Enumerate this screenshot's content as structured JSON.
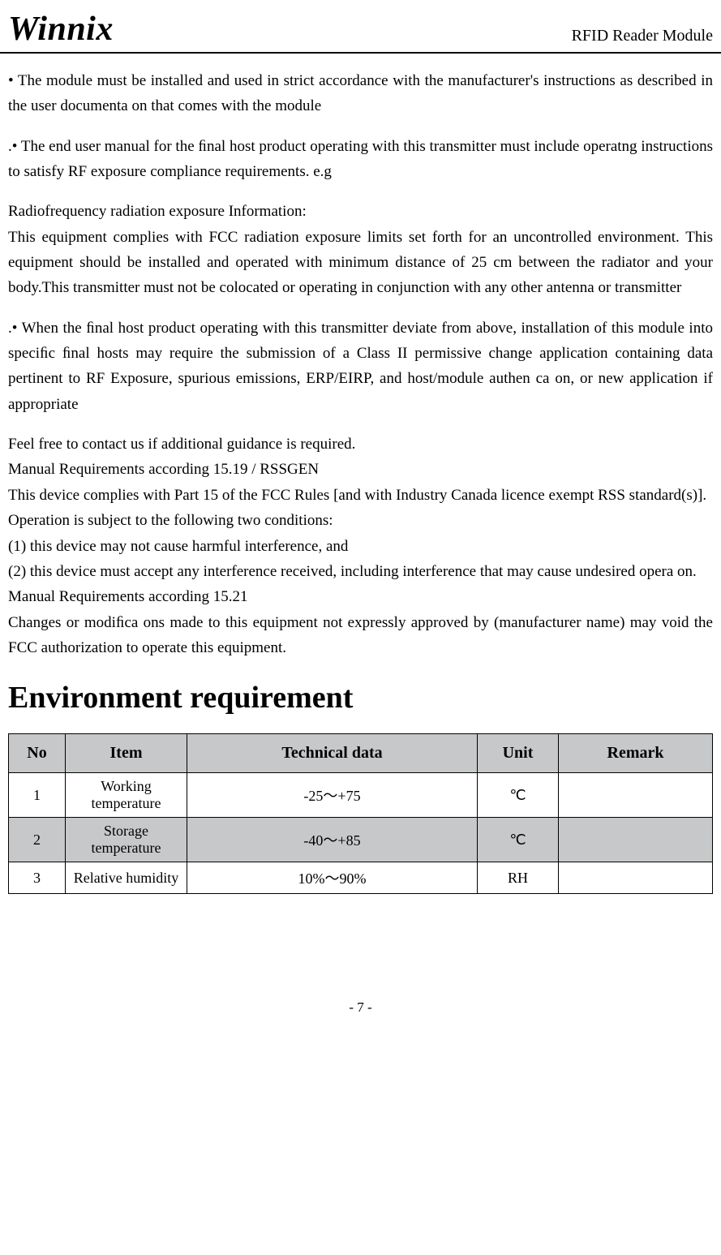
{
  "header": {
    "logo": "Winnix",
    "right": "RFID Reader Module"
  },
  "paragraphs": {
    "p1": "• The module must be installed and used in strict accordance with the manufacturer's instructions as described in the user documenta on that comes with the module",
    "p2": ".• The end user manual for the ﬁnal host product operating with this transmitter must include operatng instructions to satisfy RF exposure compliance requirements. e.g",
    "p3a": "Radiofrequency radiation exposure Information:",
    "p3b": "This equipment complies with FCC radiation exposure limits set forth for an uncontrolled environment. This equipment should be installed and operated with minimum distance of 25 cm between the radiator and your body.This transmitter must not be colocated or operating in conjunction with any other antenna or transmitter",
    "p4": ".• When the ﬁnal host product operating with this transmitter deviate from above, installation of this module into speciﬁc ﬁnal hosts may require the submission of a Class II permissive change application containing data pertinent to RF Exposure, spurious emissions, ERP/EIRP, and host/module authen ca on, or new application if appropriate",
    "p5a": "Feel free to contact us if additional guidance is required.",
    "p5b": "Manual Requirements according 15.19 / RSSGEN",
    "p5c": "This device complies with Part 15 of the FCC Rules [and with Industry Canada licence exempt RSS standard(s)].",
    "p5d": "Operation is subject to the following two conditions:",
    "p5e": "(1) this device may not cause harmful interference, and",
    "p5f": "(2) this device must accept any interference received, including interference that may cause undesired opera on.",
    "p5g": "Manual Requirements according 15.21",
    "p5h": "Changes or modiﬁca ons made to this equipment not expressly approved by (manufacturer name) may void the FCC authorization to operate this equipment."
  },
  "section_title": "Environment requirement",
  "table": {
    "headers": {
      "no": "No",
      "item": "Item",
      "tech": "Technical data",
      "unit": "Unit",
      "remark": "Remark"
    },
    "rows": [
      {
        "no": "1",
        "item": "Working temperature",
        "tech": "-25～+75",
        "unit": "℃",
        "remark": ""
      },
      {
        "no": "2",
        "item": "Storage temperature",
        "tech": "-40～+85",
        "unit": "℃",
        "remark": ""
      },
      {
        "no": "3",
        "item": "Relative humidity",
        "tech": "10%～90%",
        "unit": "RH",
        "remark": ""
      }
    ]
  },
  "footer": "- 7 -"
}
